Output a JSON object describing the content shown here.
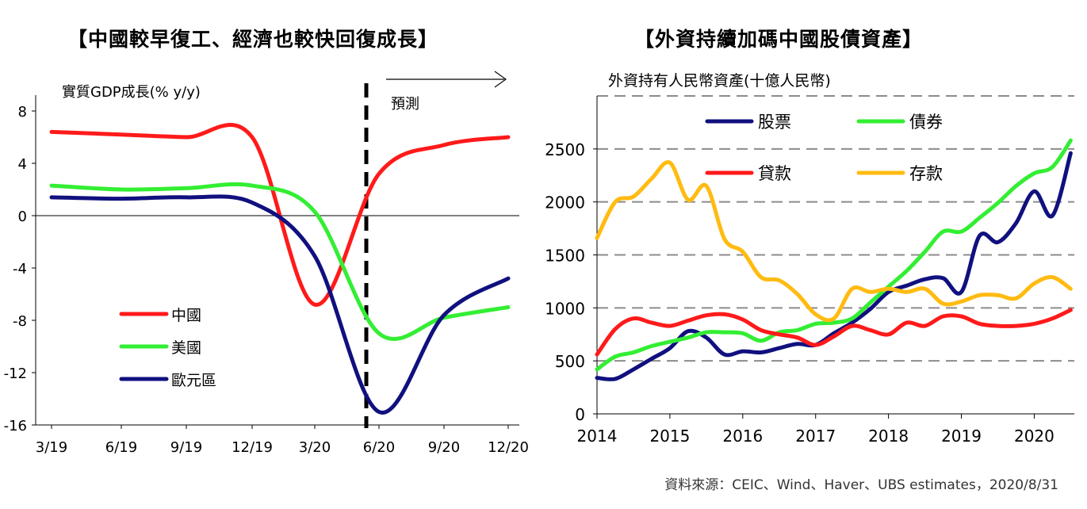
{
  "page": {
    "left_title": "【中國較早復工、經濟也較快回復成長】",
    "right_title": "【外資持續加碼中國股債資產】",
    "source": "資料來源：CEIC、Wind、Haver、UBS estimates，2020/8/31"
  },
  "chart_data": [
    {
      "type": "line",
      "title": "【中國較早復工、經濟也較快回復成長】",
      "ylabel": "實質GDP成長(% y/y)",
      "xlabel": "",
      "ylim": [
        -16,
        8
      ],
      "yticks": [
        "8",
        "4",
        "0",
        "-4",
        "-8",
        "-12",
        "-16"
      ],
      "xticks": [
        "3/19",
        "6/19",
        "9/19",
        "12/19",
        "3/20",
        "6/20",
        "9/20",
        "12/20"
      ],
      "annotation": {
        "text": "預測",
        "at": "6/20"
      },
      "legend_position": "bottom-left",
      "x": [
        "3/19",
        "6/19",
        "9/19",
        "12/19",
        "3/20",
        "6/20",
        "9/20",
        "12/20"
      ],
      "series": [
        {
          "name": "中國",
          "color": "#ff1a1a",
          "values": [
            6.4,
            6.2,
            6.0,
            6.0,
            -6.8,
            3.2,
            5.4,
            6.0
          ]
        },
        {
          "name": "美國",
          "color": "#33ee33",
          "values": [
            2.3,
            2.0,
            2.1,
            2.3,
            0.3,
            -9.0,
            -7.8,
            -7.0
          ]
        },
        {
          "name": "歐元區",
          "color": "#10107f",
          "values": [
            1.4,
            1.3,
            1.4,
            1.0,
            -3.1,
            -15.0,
            -7.6,
            -4.8
          ]
        }
      ]
    },
    {
      "type": "line",
      "title": "【外資持續加碼中國股債資產】",
      "ylabel": "外資持有人民幣資產(十億人民幣)",
      "xlabel": "",
      "ylim": [
        0,
        3000
      ],
      "yticks": [
        "0",
        "500",
        "1000",
        "1500",
        "2000",
        "2500"
      ],
      "xticks": [
        "2014",
        "2015",
        "2016",
        "2017",
        "2018",
        "2019",
        "2020"
      ],
      "grid": true,
      "legend_position": "top",
      "x": [
        2014.0,
        2014.25,
        2014.5,
        2014.75,
        2015.0,
        2015.25,
        2015.5,
        2015.75,
        2016.0,
        2016.25,
        2016.5,
        2016.75,
        2017.0,
        2017.25,
        2017.5,
        2017.75,
        2018.0,
        2018.25,
        2018.5,
        2018.75,
        2019.0,
        2019.25,
        2019.5,
        2019.75,
        2020.0,
        2020.25,
        2020.5
      ],
      "series": [
        {
          "name": "股票",
          "color": "#10107f",
          "values": [
            340,
            330,
            420,
            520,
            620,
            780,
            720,
            560,
            590,
            580,
            620,
            660,
            650,
            760,
            860,
            990,
            1150,
            1210,
            1270,
            1280,
            1150,
            1680,
            1620,
            1800,
            2100,
            1870,
            2460
          ]
        },
        {
          "name": "債券",
          "color": "#33ee33",
          "values": [
            420,
            540,
            580,
            640,
            680,
            720,
            770,
            770,
            760,
            690,
            770,
            790,
            850,
            860,
            900,
            1050,
            1200,
            1350,
            1530,
            1720,
            1720,
            1850,
            1990,
            2150,
            2270,
            2330,
            2580
          ]
        },
        {
          "name": "貸款",
          "color": "#ff1a1a",
          "values": [
            560,
            800,
            900,
            860,
            830,
            880,
            930,
            940,
            890,
            790,
            750,
            720,
            650,
            730,
            830,
            790,
            750,
            860,
            830,
            920,
            920,
            850,
            830,
            830,
            850,
            900,
            980
          ]
        },
        {
          "name": "存款",
          "color": "#ffbb11",
          "values": [
            1660,
            2000,
            2050,
            2220,
            2370,
            2020,
            2150,
            1650,
            1530,
            1290,
            1260,
            1130,
            940,
            900,
            1180,
            1150,
            1180,
            1150,
            1180,
            1040,
            1060,
            1120,
            1120,
            1090,
            1230,
            1290,
            1180
          ]
        }
      ]
    }
  ]
}
